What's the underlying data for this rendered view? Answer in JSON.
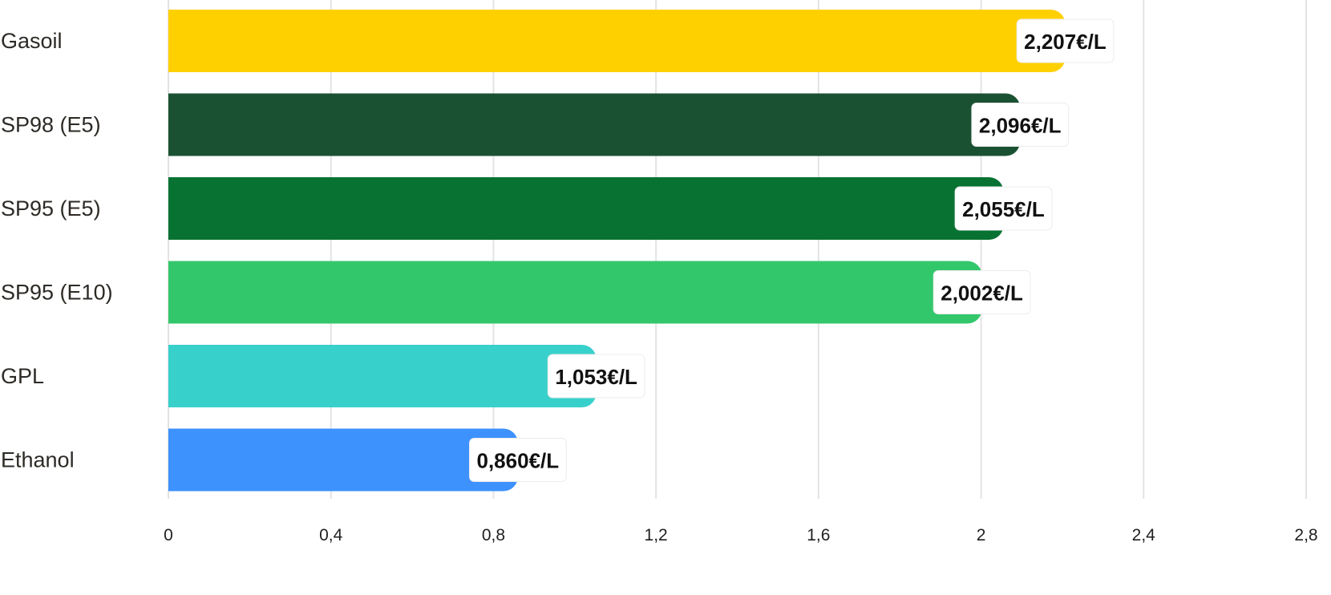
{
  "chart_data": {
    "type": "bar",
    "orientation": "horizontal",
    "title": "",
    "xlabel": "",
    "ylabel": "",
    "categories": [
      "Gasoil",
      "SP98 (E5)",
      "SP95 (E5)",
      "SP95 (E10)",
      "GPL",
      "Ethanol"
    ],
    "values": [
      2.207,
      2.096,
      2.055,
      2.002,
      1.053,
      0.86
    ],
    "value_labels": [
      "2,207€/L",
      "2,096€/L",
      "2,055€/L",
      "2,002€/L",
      "1,053€/L",
      "0,860€/L"
    ],
    "colors": [
      "#ffd000",
      "#1a5132",
      "#087232",
      "#33c76c",
      "#38d0cb",
      "#3d92fe"
    ],
    "xlim": [
      0,
      2.8
    ],
    "x_ticks": [
      0,
      0.4,
      0.8,
      1.2,
      1.6,
      2,
      2.4,
      2.8
    ],
    "x_tick_labels": [
      "0",
      "0,4",
      "0,8",
      "1,2",
      "1,6",
      "2",
      "2,4",
      "2,8"
    ],
    "grid": true,
    "legend": "none"
  }
}
